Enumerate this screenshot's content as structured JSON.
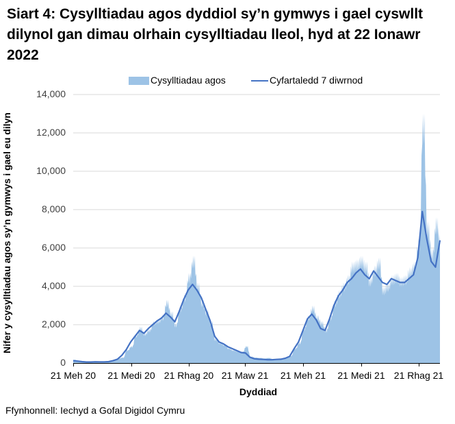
{
  "title": "Siart 4: Cysylltiadau agos dyddiol sy’n gymwys i gael cyswllt dilynol gan dimau olrhain cysylltiadau lleol, hyd at 22 Ionawr 2022",
  "legend": {
    "bars_label": "Cysylltiadau agos",
    "line_label": "Cyfartaledd 7 diwrnod"
  },
  "colors": {
    "bars": "#9dc3e6",
    "line": "#4472c4",
    "grid": "#d9d9d9",
    "axis": "#000000"
  },
  "y_ticks": [
    "0",
    "2,000",
    "4,000",
    "6,000",
    "8,000",
    "10,000",
    "12,000",
    "14,000"
  ],
  "x_ticks": [
    "21 Meh 20",
    "21 Medi 20",
    "21 Rhag 20",
    "21 Maw 21",
    "21 Meh 21",
    "21 Medi 21",
    "21 Rhag 21"
  ],
  "ylabel": "Nifer y cysylltiadau agos sy’n gymwys i gael eu dilyn",
  "xlabel": "Dyddiad",
  "source": "Ffynhonnell: Iechyd a Gofal Digidol Cymru",
  "chart_data": {
    "type": "bar",
    "title": "Siart 4: Cysylltiadau agos dyddiol sy’n gymwys i gael cyswllt dilynol gan dimau olrhain cysylltiadau lleol, hyd at 22 Ionawr 2022",
    "xlabel": "Dyddiad",
    "ylabel": "Nifer y cysylltiadau agos sy’n gymwys i gael eu dilyn",
    "ylim": [
      0,
      14000
    ],
    "y_tick_step": 2000,
    "grid": true,
    "legend_position": "top",
    "x_tick_labels": [
      "21 Meh 20",
      "21 Medi 20",
      "21 Rhag 20",
      "21 Maw 21",
      "21 Meh 21",
      "21 Medi 21",
      "21 Rhag 21"
    ],
    "x_start": "21 Meh 20",
    "x_end": "22 Ion 22",
    "note": "Weekly samples (approx. every 7 days) read from chart; bars = daily close contacts, line = 7-day average",
    "x": [
      "21 Meh 20",
      "28 Meh 20",
      "05 Gor 20",
      "12 Gor 20",
      "19 Gor 20",
      "26 Gor 20",
      "02 Awst 20",
      "09 Awst 20",
      "16 Awst 20",
      "23 Awst 20",
      "30 Awst 20",
      "06 Medi 20",
      "13 Medi 20",
      "20 Medi 20",
      "27 Medi 20",
      "04 Hyd 20",
      "11 Hyd 20",
      "18 Hyd 20",
      "25 Hyd 20",
      "01 Tach 20",
      "08 Tach 20",
      "15 Tach 20",
      "22 Tach 20",
      "29 Tach 20",
      "06 Rhag 20",
      "13 Rhag 20",
      "20 Rhag 20",
      "27 Rhag 20",
      "03 Ion 21",
      "10 Ion 21",
      "17 Ion 21",
      "24 Ion 21",
      "31 Ion 21",
      "07 Chwef 21",
      "14 Chwef 21",
      "21 Chwef 21",
      "28 Chwef 21",
      "07 Maw 21",
      "14 Maw 21",
      "21 Maw 21",
      "28 Maw 21",
      "04 Ebr 21",
      "11 Ebr 21",
      "18 Ebr 21",
      "25 Ebr 21",
      "02 Mai 21",
      "09 Mai 21",
      "16 Mai 21",
      "23 Mai 21",
      "30 Mai 21",
      "06 Meh 21",
      "13 Meh 21",
      "20 Meh 21",
      "27 Meh 21",
      "04 Gor 21",
      "11 Gor 21",
      "18 Gor 21",
      "25 Gor 21",
      "01 Awst 21",
      "08 Awst 21",
      "15 Awst 21",
      "22 Awst 21",
      "29 Awst 21",
      "05 Medi 21",
      "12 Medi 21",
      "19 Medi 21",
      "26 Medi 21",
      "03 Hyd 21",
      "10 Hyd 21",
      "17 Hyd 21",
      "24 Hyd 21",
      "31 Hyd 21",
      "07 Tach 21",
      "14 Tach 21",
      "21 Tach 21",
      "28 Tach 21",
      "05 Rhag 21",
      "12 Rhag 21",
      "19 Rhag 21",
      "26 Rhag 21",
      "02 Ion 22",
      "09 Ion 22",
      "16 Ion 22",
      "22 Ion 22"
    ],
    "series": [
      {
        "name": "Cysylltiadau agos",
        "type": "bar",
        "values": [
          180,
          120,
          80,
          60,
          70,
          90,
          60,
          80,
          60,
          150,
          250,
          300,
          700,
          900,
          1500,
          1900,
          1600,
          1800,
          2200,
          2300,
          2500,
          3300,
          2700,
          2100,
          3000,
          3600,
          4700,
          5600,
          4200,
          3300,
          2800,
          2200,
          1300,
          1100,
          1000,
          800,
          700,
          650,
          600,
          900,
          350,
          300,
          280,
          250,
          280,
          220,
          200,
          250,
          300,
          400,
          800,
          1100,
          1900,
          2500,
          3000,
          2500,
          2200,
          1800,
          2500,
          3300,
          3800,
          4200,
          4600,
          5300,
          5400,
          5600,
          5300,
          4500,
          5100,
          5500,
          4000,
          4200,
          4600,
          4700,
          4500,
          4600,
          5000,
          5300,
          6500,
          13000,
          7400,
          6000,
          7600,
          6800
        ]
      },
      {
        "name": "Cyfartaledd 7 diwrnod",
        "type": "line",
        "values": [
          120,
          100,
          70,
          55,
          55,
          65,
          60,
          60,
          70,
          120,
          200,
          400,
          700,
          1100,
          1400,
          1700,
          1550,
          1800,
          2000,
          2200,
          2350,
          2600,
          2400,
          2150,
          2700,
          3300,
          3800,
          4100,
          3800,
          3400,
          2800,
          2200,
          1400,
          1100,
          1000,
          850,
          750,
          650,
          550,
          520,
          300,
          220,
          200,
          190,
          170,
          170,
          190,
          200,
          250,
          350,
          750,
          1100,
          1700,
          2300,
          2550,
          2250,
          1800,
          1700,
          2300,
          3000,
          3500,
          3800,
          4200,
          4400,
          4700,
          4900,
          4600,
          4400,
          4800,
          4500,
          4200,
          4100,
          4400,
          4300,
          4200,
          4200,
          4400,
          4600,
          5500,
          7900,
          6500,
          5300,
          5000,
          6400
        ]
      }
    ]
  }
}
